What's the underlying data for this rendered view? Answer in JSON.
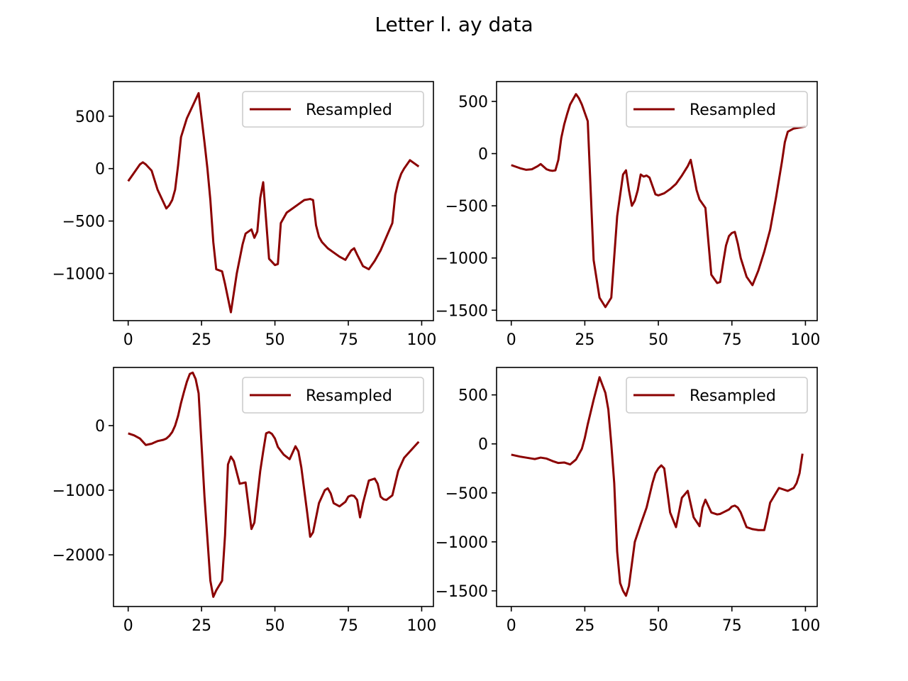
{
  "figure": {
    "title": "Letter l. ay data"
  },
  "chart_data": [
    {
      "type": "line",
      "xlim": [
        -5,
        104
      ],
      "ylim": [
        -1450,
        830
      ],
      "xticks": [
        0,
        25,
        50,
        75,
        100
      ],
      "yticks": [
        500,
        0,
        -500,
        -1000
      ],
      "xtick_labels": [
        "0",
        "25",
        "50",
        "75",
        "100"
      ],
      "ytick_labels": [
        "500",
        "0",
        "−500",
        "−1000"
      ],
      "legend": {
        "position": "top-right",
        "label": "Resampled"
      },
      "series": [
        {
          "name": "Resampled",
          "color": "#8b0000",
          "x": [
            0,
            2,
            4,
            5,
            6,
            8,
            10,
            12,
            13,
            14,
            15,
            16,
            17,
            18,
            20,
            22,
            24,
            26,
            27,
            28,
            29,
            30,
            32,
            33,
            35,
            37,
            39,
            40,
            42,
            43,
            44,
            45,
            46,
            48,
            50,
            51,
            52,
            54,
            56,
            58,
            60,
            62,
            63,
            64,
            65,
            66,
            68,
            70,
            72,
            74,
            76,
            77,
            78,
            80,
            82,
            84,
            86,
            88,
            90,
            91,
            92,
            93,
            94,
            96,
            97,
            99
          ],
          "y": [
            -120,
            -40,
            40,
            60,
            40,
            -20,
            -200,
            -320,
            -380,
            -350,
            -300,
            -200,
            30,
            300,
            480,
            600,
            720,
            250,
            0,
            -300,
            -700,
            -960,
            -980,
            -1100,
            -1370,
            -1000,
            -720,
            -620,
            -580,
            -660,
            -600,
            -280,
            -130,
            -860,
            -920,
            -910,
            -520,
            -420,
            -380,
            -340,
            -300,
            -290,
            -300,
            -540,
            -650,
            -700,
            -760,
            -800,
            -840,
            -870,
            -780,
            -760,
            -820,
            -930,
            -960,
            -880,
            -780,
            -650,
            -520,
            -250,
            -130,
            -50,
            0,
            80,
            60,
            20
          ]
        }
      ]
    },
    {
      "type": "line",
      "xlim": [
        -5,
        104
      ],
      "ylim": [
        -1600,
        690
      ],
      "xticks": [
        0,
        25,
        50,
        75,
        100
      ],
      "yticks": [
        500,
        0,
        -500,
        -1000,
        -1500
      ],
      "xtick_labels": [
        "0",
        "25",
        "50",
        "75",
        "100"
      ],
      "ytick_labels": [
        "500",
        "0",
        "−500",
        "−1000",
        "−1500"
      ],
      "legend": {
        "position": "top-right",
        "label": "Resampled"
      },
      "series": [
        {
          "name": "Resampled",
          "color": "#8b0000",
          "x": [
            0,
            3,
            5,
            7,
            9,
            10,
            12,
            13,
            14,
            15,
            16,
            17,
            18,
            19,
            20,
            21,
            22,
            23,
            24,
            26,
            28,
            30,
            32,
            34,
            36,
            38,
            39,
            40,
            41,
            42,
            43,
            44,
            45,
            46,
            47,
            48,
            49,
            50,
            52,
            54,
            56,
            58,
            60,
            61,
            62,
            63,
            64,
            65,
            66,
            68,
            70,
            71,
            72,
            73,
            74,
            75,
            76,
            77,
            78,
            80,
            82,
            84,
            86,
            88,
            90,
            92,
            93,
            94,
            96,
            98,
            100
          ],
          "y": [
            -110,
            -140,
            -155,
            -150,
            -120,
            -100,
            -150,
            -160,
            -165,
            -160,
            -60,
            150,
            280,
            380,
            470,
            520,
            570,
            530,
            470,
            310,
            -1020,
            -1380,
            -1470,
            -1380,
            -600,
            -200,
            -160,
            -350,
            -500,
            -450,
            -350,
            -200,
            -220,
            -210,
            -230,
            -310,
            -390,
            -400,
            -380,
            -340,
            -290,
            -210,
            -120,
            -60,
            -200,
            -350,
            -440,
            -480,
            -520,
            -1160,
            -1240,
            -1230,
            -1050,
            -880,
            -790,
            -760,
            -750,
            -860,
            -1000,
            -1180,
            -1260,
            -1120,
            -940,
            -730,
            -420,
            -80,
            110,
            210,
            240,
            250,
            260
          ]
        }
      ]
    },
    {
      "type": "line",
      "xlim": [
        -5,
        104
      ],
      "ylim": [
        -2800,
        900
      ],
      "xticks": [
        0,
        25,
        50,
        75,
        100
      ],
      "yticks": [
        0,
        -1000,
        -2000
      ],
      "xtick_labels": [
        "0",
        "25",
        "50",
        "75",
        "100"
      ],
      "ytick_labels": [
        "0",
        "−1000",
        "−2000"
      ],
      "legend": {
        "position": "top-right",
        "label": "Resampled"
      },
      "series": [
        {
          "name": "Resampled",
          "color": "#8b0000",
          "x": [
            0,
            2,
            4,
            6,
            7,
            8,
            9,
            10,
            12,
            13,
            14,
            15,
            16,
            17,
            18,
            19,
            20,
            21,
            22,
            23,
            24,
            25,
            26,
            28,
            29,
            30,
            32,
            33,
            34,
            35,
            36,
            38,
            40,
            42,
            43,
            44,
            45,
            46,
            47,
            48,
            49,
            50,
            51,
            53,
            55,
            57,
            58,
            59,
            60,
            61,
            62,
            63,
            65,
            67,
            68,
            69,
            70,
            72,
            74,
            75,
            76,
            77,
            78,
            79,
            80,
            82,
            84,
            85,
            86,
            87,
            88,
            90,
            92,
            94,
            96,
            98,
            99
          ],
          "y": [
            -120,
            -150,
            -200,
            -300,
            -290,
            -280,
            -260,
            -240,
            -220,
            -200,
            -160,
            -100,
            0,
            150,
            350,
            520,
            680,
            800,
            820,
            720,
            500,
            -300,
            -1100,
            -2400,
            -2650,
            -2550,
            -2400,
            -1700,
            -600,
            -480,
            -550,
            -900,
            -880,
            -1600,
            -1500,
            -1100,
            -700,
            -400,
            -120,
            -100,
            -130,
            -200,
            -330,
            -450,
            -520,
            -320,
            -400,
            -650,
            -1000,
            -1350,
            -1720,
            -1650,
            -1200,
            -1000,
            -970,
            -1050,
            -1200,
            -1250,
            -1180,
            -1100,
            -1080,
            -1090,
            -1150,
            -1420,
            -1200,
            -850,
            -820,
            -900,
            -1100,
            -1140,
            -1150,
            -1080,
            -700,
            -500,
            -400,
            -300,
            -250
          ]
        }
      ]
    },
    {
      "type": "line",
      "xlim": [
        -5,
        104
      ],
      "ylim": [
        -1660,
        780
      ],
      "xticks": [
        0,
        25,
        50,
        75,
        100
      ],
      "yticks": [
        500,
        0,
        -500,
        -1000,
        -1500
      ],
      "xtick_labels": [
        "0",
        "25",
        "50",
        "75",
        "100"
      ],
      "ytick_labels": [
        "500",
        "0",
        "−500",
        "−1000",
        "−1500"
      ],
      "legend": {
        "position": "top-right",
        "label": "Resampled"
      },
      "series": [
        {
          "name": "Resampled",
          "color": "#8b0000",
          "x": [
            0,
            3,
            5,
            7,
            8,
            10,
            12,
            14,
            16,
            18,
            20,
            22,
            24,
            25,
            26,
            28,
            30,
            31,
            32,
            33,
            34,
            35,
            36,
            37,
            38,
            39,
            40,
            42,
            44,
            46,
            48,
            49,
            50,
            51,
            52,
            54,
            56,
            57,
            58,
            60,
            62,
            64,
            65,
            66,
            68,
            70,
            71,
            72,
            74,
            75,
            76,
            77,
            78,
            80,
            82,
            84,
            86,
            87,
            88,
            90,
            91,
            92,
            94,
            96,
            97,
            98,
            99
          ],
          "y": [
            -110,
            -130,
            -140,
            -150,
            -155,
            -140,
            -150,
            -175,
            -195,
            -190,
            -210,
            -160,
            -50,
            60,
            200,
            450,
            680,
            600,
            520,
            350,
            0,
            -400,
            -1100,
            -1420,
            -1500,
            -1550,
            -1450,
            -1000,
            -820,
            -650,
            -400,
            -300,
            -250,
            -220,
            -250,
            -700,
            -850,
            -700,
            -550,
            -480,
            -750,
            -840,
            -650,
            -570,
            -700,
            -720,
            -715,
            -700,
            -670,
            -640,
            -630,
            -650,
            -700,
            -850,
            -870,
            -880,
            -880,
            -750,
            -600,
            -500,
            -450,
            -460,
            -480,
            -450,
            -400,
            -300,
            -100
          ]
        }
      ]
    }
  ]
}
